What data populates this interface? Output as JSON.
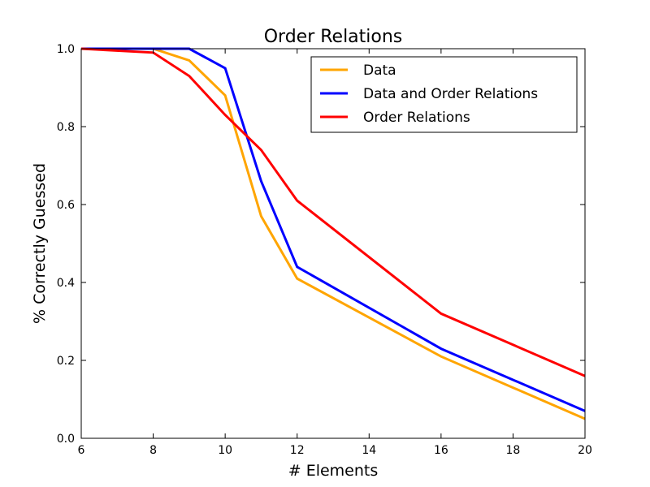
{
  "chart_data": {
    "type": "line",
    "title": "Order Relations",
    "xlabel": "# Elements",
    "ylabel": "% Correctly Guessed",
    "xlim": [
      6,
      20
    ],
    "ylim": [
      0.0,
      1.0
    ],
    "xticks": [
      "6",
      "8",
      "10",
      "12",
      "14",
      "16",
      "18",
      "20"
    ],
    "yticks": [
      "0.0",
      "0.2",
      "0.4",
      "0.6",
      "0.8",
      "1.0"
    ],
    "grid": false,
    "legend_position": "top-right",
    "series": [
      {
        "name": "Data",
        "color": "#ffa500",
        "x": [
          6,
          8,
          9,
          10,
          11,
          12,
          16,
          20
        ],
        "y": [
          1.0,
          1.0,
          0.97,
          0.88,
          0.57,
          0.41,
          0.21,
          0.05
        ]
      },
      {
        "name": "Data and Order Relations",
        "color": "#0000ff",
        "x": [
          6,
          8,
          9,
          10,
          11,
          12,
          16,
          20
        ],
        "y": [
          1.0,
          1.0,
          1.0,
          0.95,
          0.66,
          0.44,
          0.23,
          0.07
        ]
      },
      {
        "name": "Order Relations",
        "color": "#ff0000",
        "x": [
          6,
          8,
          9,
          10,
          11,
          12,
          16,
          20
        ],
        "y": [
          1.0,
          0.99,
          0.93,
          0.83,
          0.74,
          0.61,
          0.32,
          0.16
        ]
      }
    ]
  }
}
